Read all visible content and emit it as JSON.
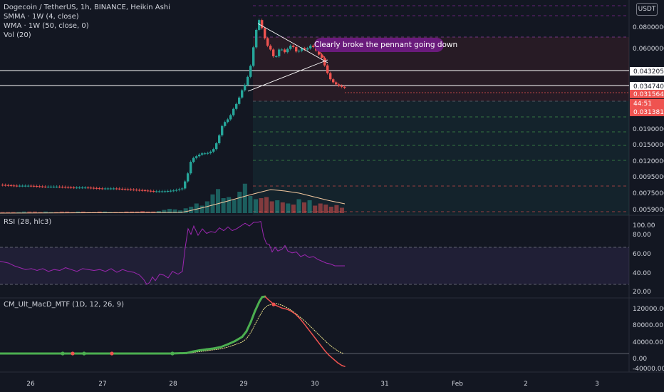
{
  "legend": {
    "title": "Dogecoin / TetherUS, 1h, BINANCE, Heikin Ashi",
    "smma": "SMMA · 1W (4, close)",
    "wma": "WMA · 1W (50, close, 0)",
    "vol": "Vol (20)",
    "rsi": "RSI (28, hlc3)",
    "macd": "CM_Ult_MacD_MTF (1D, 12, 26, 9)"
  },
  "annotation": "Clearly broke the pennant going down",
  "currency": "USDT",
  "price_axis": {
    "ticks": [
      "0.0800000",
      "0.0600000",
      "0.0270000",
      "0.0190000",
      "0.0150000",
      "0.0120000",
      "0.0095000",
      "0.0075000",
      "0.0059000"
    ],
    "tags": [
      {
        "text": "0.0432052",
        "color": "#ffffff",
        "text_color": "#131722"
      },
      {
        "text": "0.0347404",
        "color": "#ffffff",
        "text_color": "#131722"
      },
      {
        "text": "0.0315640",
        "color": "#ef5350",
        "text_color": "#ffffff"
      },
      {
        "text": "44:51",
        "color": "#ef5350",
        "text_color": "#ffffff"
      },
      {
        "text": "0.0313811",
        "color": "#ef5350",
        "text_color": "#ffffff"
      }
    ]
  },
  "rsi_axis": {
    "ticks": [
      "100.00",
      "80.00",
      "60.00",
      "40.00",
      "20.00"
    ]
  },
  "macd_axis": {
    "ticks": [
      "120000.00",
      "80000.00",
      "40000.00",
      "0.00",
      "-40000.00"
    ]
  },
  "time_axis": {
    "ticks": [
      "26",
      "27",
      "28",
      "29",
      "30",
      "31",
      "Feb",
      "2",
      "3"
    ]
  },
  "colors": {
    "up": "#26a69a",
    "down": "#ef5350",
    "rsi": "#9c27b0",
    "smma": "#f5c9a0",
    "macd_up": "#4caf50",
    "macd_down": "#ef5350",
    "signal": "#f0e68c"
  },
  "chart_data": [
    {
      "type": "candlestick",
      "title": "Dogecoin / TetherUS, 1h, BINANCE, Heikin Ashi",
      "scale": "log",
      "ylim": [
        0.0052,
        0.11
      ],
      "x_ticks": [
        "26",
        "27",
        "28",
        "29",
        "30",
        "31",
        "Feb",
        "2",
        "3"
      ],
      "price_series": [
        [
          0,
          0.008
        ],
        [
          20,
          0.0079
        ],
        [
          40,
          0.0079
        ],
        [
          60,
          0.0078
        ],
        [
          80,
          0.0078
        ],
        [
          100,
          0.0077
        ],
        [
          120,
          0.0077
        ],
        [
          140,
          0.0076
        ],
        [
          160,
          0.0076
        ],
        [
          180,
          0.0075
        ],
        [
          200,
          0.0074
        ],
        [
          215,
          0.0073
        ],
        [
          230,
          0.0073
        ],
        [
          245,
          0.0074
        ],
        [
          255,
          0.0076
        ],
        [
          262,
          0.009
        ],
        [
          268,
          0.0115
        ],
        [
          275,
          0.012
        ],
        [
          282,
          0.0125
        ],
        [
          290,
          0.0125
        ],
        [
          298,
          0.013
        ],
        [
          305,
          0.015
        ],
        [
          312,
          0.019
        ],
        [
          318,
          0.02
        ],
        [
          322,
          0.021
        ],
        [
          328,
          0.024
        ],
        [
          333,
          0.026
        ],
        [
          338,
          0.03
        ],
        [
          343,
          0.033
        ],
        [
          348,
          0.038
        ],
        [
          352,
          0.045
        ],
        [
          356,
          0.06
        ],
        [
          360,
          0.076
        ],
        [
          364,
          0.085
        ],
        [
          368,
          0.07
        ],
        [
          372,
          0.062
        ],
        [
          376,
          0.056
        ],
        [
          380,
          0.054
        ],
        [
          384,
          0.048
        ],
        [
          388,
          0.05
        ],
        [
          392,
          0.056
        ],
        [
          396,
          0.054
        ],
        [
          400,
          0.052
        ],
        [
          404,
          0.056
        ],
        [
          408,
          0.058
        ],
        [
          412,
          0.056
        ],
        [
          416,
          0.052
        ],
        [
          420,
          0.054
        ],
        [
          424,
          0.056
        ],
        [
          428,
          0.054
        ],
        [
          432,
          0.056
        ],
        [
          436,
          0.058
        ],
        [
          440,
          0.056
        ],
        [
          444,
          0.053
        ],
        [
          448,
          0.05
        ],
        [
          452,
          0.048
        ],
        [
          456,
          0.042
        ],
        [
          460,
          0.038
        ],
        [
          464,
          0.035
        ],
        [
          468,
          0.034
        ],
        [
          472,
          0.033
        ],
        [
          476,
          0.0325
        ],
        [
          480,
          0.032
        ],
        [
          484,
          0.0316
        ]
      ],
      "volume": [
        2,
        2,
        2,
        2,
        3,
        3,
        3,
        2,
        3,
        2,
        2,
        3,
        3,
        2,
        3,
        3,
        2,
        2,
        3,
        3,
        2,
        2,
        2,
        3,
        3,
        3,
        4,
        3,
        3,
        4,
        6,
        8,
        7,
        5,
        9,
        12,
        18,
        14,
        22,
        35,
        45,
        28,
        30,
        25,
        40,
        55,
        32,
        26,
        28,
        30,
        22,
        24,
        20,
        18,
        16,
        26,
        20,
        24,
        14,
        18,
        16,
        12,
        15,
        10
      ]
    },
    {
      "type": "line",
      "title": "RSI (28, hlc3)",
      "ylim": [
        20,
        100
      ],
      "bands": [
        30,
        70
      ],
      "series": [
        {
          "name": "RSI",
          "points": [
            [
              0,
              55
            ],
            [
              12,
              53
            ],
            [
              20,
              50
            ],
            [
              28,
              48
            ],
            [
              36,
              46
            ],
            [
              44,
              47
            ],
            [
              52,
              45
            ],
            [
              60,
              47
            ],
            [
              68,
              44
            ],
            [
              76,
              46
            ],
            [
              84,
              45
            ],
            [
              92,
              48
            ],
            [
              100,
              46
            ],
            [
              108,
              44
            ],
            [
              116,
              47
            ],
            [
              124,
              46
            ],
            [
              132,
              45
            ],
            [
              140,
              46
            ],
            [
              148,
              44
            ],
            [
              156,
              47
            ],
            [
              164,
              43
            ],
            [
              172,
              46
            ],
            [
              180,
              44
            ],
            [
              188,
              43
            ],
            [
              196,
              40
            ],
            [
              202,
              35
            ],
            [
              206,
              30
            ],
            [
              210,
              32
            ],
            [
              214,
              38
            ],
            [
              218,
              34
            ],
            [
              224,
              41
            ],
            [
              230,
              40
            ],
            [
              236,
              37
            ],
            [
              242,
              44
            ],
            [
              250,
              41
            ],
            [
              256,
              44
            ],
            [
              260,
              70
            ],
            [
              264,
              90
            ],
            [
              268,
              84
            ],
            [
              272,
              93
            ],
            [
              278,
              83
            ],
            [
              284,
              90
            ],
            [
              290,
              85
            ],
            [
              296,
              87
            ],
            [
              302,
              86
            ],
            [
              308,
              91
            ],
            [
              314,
              88
            ],
            [
              320,
              92
            ],
            [
              326,
              88
            ],
            [
              332,
              90
            ],
            [
              338,
              93
            ],
            [
              344,
              96
            ],
            [
              350,
              93
            ],
            [
              356,
              97
            ],
            [
              362,
              97
            ],
            [
              366,
              98
            ],
            [
              370,
              82
            ],
            [
              374,
              74
            ],
            [
              378,
              73
            ],
            [
              382,
              65
            ],
            [
              386,
              70
            ],
            [
              390,
              66
            ],
            [
              396,
              68
            ],
            [
              400,
              72
            ],
            [
              404,
              66
            ],
            [
              410,
              64
            ],
            [
              416,
              65
            ],
            [
              422,
              60
            ],
            [
              428,
              62
            ],
            [
              434,
              59
            ],
            [
              440,
              60
            ],
            [
              446,
              57
            ],
            [
              452,
              55
            ],
            [
              458,
              53
            ],
            [
              464,
              52
            ],
            [
              470,
              50
            ],
            [
              476,
              50
            ],
            [
              484,
              50
            ]
          ]
        }
      ]
    },
    {
      "type": "line",
      "title": "CM_Ult_MacD_MTF (1D, 12, 26, 9)",
      "ylim": [
        -40000,
        120000
      ],
      "series": [
        {
          "name": "MacD",
          "points": [
            [
              0,
              0
            ],
            [
              40,
              0
            ],
            [
              80,
              0
            ],
            [
              120,
              0
            ],
            [
              160,
              0
            ],
            [
              200,
              0
            ],
            [
              240,
              0
            ],
            [
              262,
              1000
            ],
            [
              270,
              4000
            ],
            [
              280,
              7000
            ],
            [
              290,
              9000
            ],
            [
              300,
              11000
            ],
            [
              310,
              14000
            ],
            [
              320,
              20000
            ],
            [
              330,
              27000
            ],
            [
              340,
              36000
            ],
            [
              346,
              48000
            ],
            [
              352,
              68000
            ],
            [
              358,
              92000
            ],
            [
              364,
              112000
            ],
            [
              368,
              122000
            ],
            [
              372,
              123000
            ],
            [
              376,
              117000
            ],
            [
              380,
              112000
            ],
            [
              384,
              106000
            ],
            [
              390,
              102000
            ],
            [
              396,
              98000
            ],
            [
              402,
              96000
            ],
            [
              408,
              92000
            ],
            [
              414,
              86000
            ],
            [
              420,
              77000
            ],
            [
              426,
              66000
            ],
            [
              432,
              54000
            ],
            [
              438,
              42000
            ],
            [
              444,
              30000
            ],
            [
              450,
              18000
            ],
            [
              456,
              6000
            ],
            [
              462,
              -4000
            ],
            [
              468,
              -12000
            ],
            [
              474,
              -20000
            ],
            [
              480,
              -26000
            ],
            [
              484,
              -28000
            ]
          ]
        },
        {
          "name": "Signal",
          "points": [
            [
              0,
              0
            ],
            [
              40,
              0
            ],
            [
              80,
              0
            ],
            [
              120,
              0
            ],
            [
              160,
              0
            ],
            [
              200,
              0
            ],
            [
              240,
              0
            ],
            [
              262,
              500
            ],
            [
              270,
              2000
            ],
            [
              280,
              4000
            ],
            [
              290,
              6000
            ],
            [
              300,
              8000
            ],
            [
              310,
              10000
            ],
            [
              320,
              14000
            ],
            [
              330,
              19000
            ],
            [
              340,
              25000
            ],
            [
              346,
              32000
            ],
            [
              352,
              45000
            ],
            [
              358,
              63000
            ],
            [
              364,
              80000
            ],
            [
              370,
              96000
            ],
            [
              376,
              104000
            ],
            [
              382,
              106000
            ],
            [
              388,
              108000
            ],
            [
              396,
              104000
            ],
            [
              404,
              98000
            ],
            [
              412,
              90000
            ],
            [
              420,
              80000
            ],
            [
              428,
              70000
            ],
            [
              436,
              58000
            ],
            [
              444,
              46000
            ],
            [
              452,
              34000
            ],
            [
              460,
              22000
            ],
            [
              468,
              12000
            ],
            [
              476,
              4000
            ],
            [
              482,
              0
            ]
          ]
        }
      ]
    }
  ]
}
